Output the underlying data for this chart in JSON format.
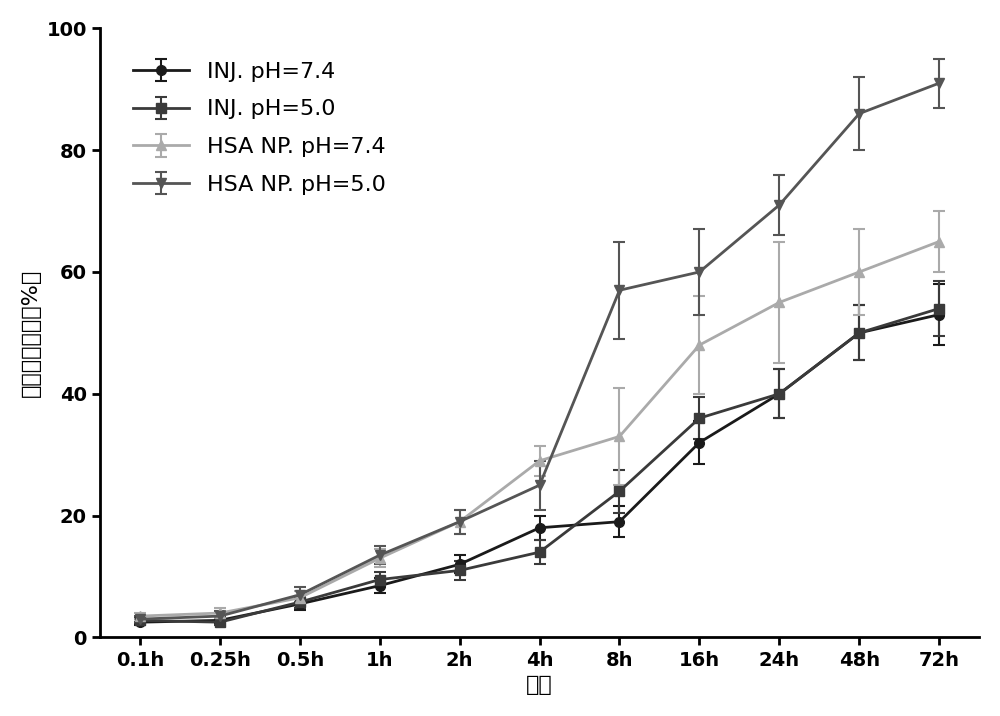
{
  "x_labels": [
    "0.1h",
    "0.25h",
    "0.5h",
    "1h",
    "2h",
    "4h",
    "8h",
    "16h",
    "24h",
    "48h",
    "72h"
  ],
  "x_positions": [
    0,
    1,
    2,
    3,
    4,
    5,
    6,
    7,
    8,
    9,
    10
  ],
  "series": [
    {
      "label": "INJ. pH=7.4",
      "color": "#1a1a1a",
      "marker": "o",
      "linewidth": 2.0,
      "markersize": 7,
      "y": [
        2.5,
        2.8,
        5.5,
        8.5,
        12.0,
        18.0,
        19.0,
        32.0,
        40.0,
        50.0,
        53.0
      ],
      "yerr": [
        0.5,
        0.5,
        1.0,
        1.2,
        1.5,
        2.0,
        2.5,
        3.5,
        4.0,
        4.5,
        5.0
      ]
    },
    {
      "label": "INJ. pH=5.0",
      "color": "#3a3a3a",
      "marker": "s",
      "linewidth": 2.0,
      "markersize": 7,
      "y": [
        2.8,
        2.5,
        5.8,
        9.5,
        11.0,
        14.0,
        24.0,
        36.0,
        40.0,
        50.0,
        54.0
      ],
      "yerr": [
        0.5,
        0.5,
        1.0,
        1.2,
        1.5,
        2.0,
        3.5,
        3.5,
        4.0,
        4.5,
        4.5
      ]
    },
    {
      "label": "HSA NP. pH=7.4",
      "color": "#aaaaaa",
      "marker": "^",
      "linewidth": 2.0,
      "markersize": 7,
      "y": [
        3.5,
        4.0,
        6.5,
        13.0,
        19.0,
        29.0,
        33.0,
        48.0,
        55.0,
        60.0,
        65.0
      ],
      "yerr": [
        0.5,
        0.8,
        1.2,
        1.5,
        2.0,
        2.5,
        8.0,
        8.0,
        10.0,
        7.0,
        5.0
      ]
    },
    {
      "label": "HSA NP. pH=5.0",
      "color": "#555555",
      "marker": "v",
      "linewidth": 2.0,
      "markersize": 7,
      "y": [
        3.0,
        3.5,
        7.0,
        13.5,
        19.0,
        25.0,
        57.0,
        60.0,
        71.0,
        86.0,
        91.0
      ],
      "yerr": [
        0.5,
        0.8,
        1.2,
        1.5,
        2.0,
        4.0,
        8.0,
        7.0,
        5.0,
        6.0,
        4.0
      ]
    }
  ],
  "ylabel": "累积药物释放（%）",
  "xlabel": "时间",
  "ylim": [
    0,
    100
  ],
  "yticks": [
    0,
    20,
    40,
    60,
    80,
    100
  ],
  "background_color": "#ffffff",
  "legend_fontsize": 16,
  "axis_fontsize": 16,
  "tick_fontsize": 14
}
